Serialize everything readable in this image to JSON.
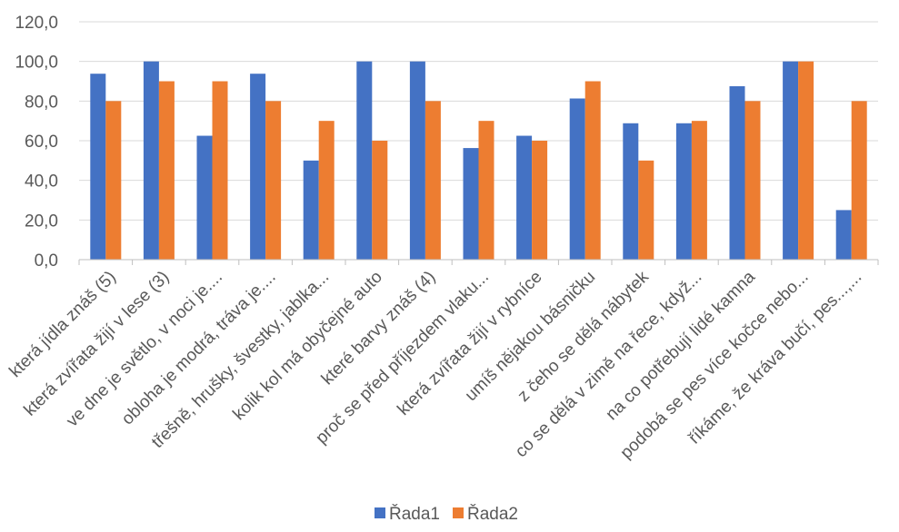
{
  "chart_data": {
    "type": "bar",
    "title": "",
    "xlabel": "",
    "ylabel": "",
    "ylim": [
      0,
      120
    ],
    "yticks": [
      "0,0",
      "20,0",
      "40,0",
      "60,0",
      "80,0",
      "100,0",
      "120,0"
    ],
    "grid": true,
    "legend_position": "bottom",
    "categories": [
      "která jídla znáš (5)",
      "která zvířata žijí v lese (3)",
      "ve dne je světlo, v noci je....",
      "obloha je modrá, tráva je....",
      "třešně, hrušky, švestky, jablka...",
      "kolik kol má obyčejné auto",
      "které barvy znáš (4)",
      "proč se před příjezdem vlaku...",
      "která zvířata žijí v rybníce",
      "umíš nějakou básničku",
      "z čeho se dělá nábytek",
      "co se dělá v zimě na řece, když...",
      "na co potřebují lidé kamna",
      "podobá se pes více kočce nebo...",
      "říkáme, že kráva bučí, pes...,..."
    ],
    "series": [
      {
        "name": "Řada1",
        "color": "#4472C4",
        "values": [
          93.8,
          100,
          62.5,
          93.8,
          50,
          100,
          100,
          56.3,
          62.5,
          81.3,
          68.8,
          68.8,
          87.5,
          100,
          25
        ]
      },
      {
        "name": "Řada2",
        "color": "#ED7D31",
        "values": [
          80,
          90,
          90,
          80,
          70,
          60,
          80,
          70,
          60,
          90,
          50,
          70,
          80,
          100,
          80
        ]
      }
    ]
  }
}
